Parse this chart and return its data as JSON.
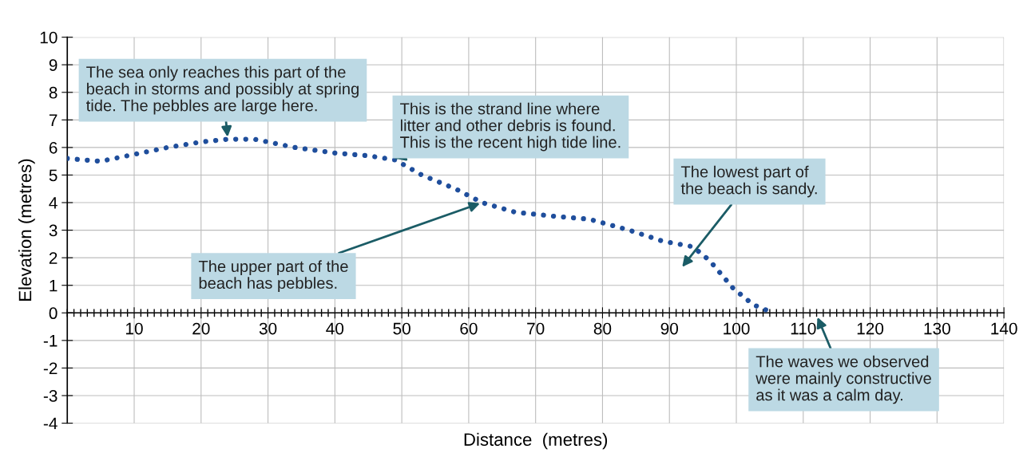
{
  "chart_data": {
    "type": "line",
    "xlabel": "Distance  (metres)",
    "ylabel": "Elevation (metres)",
    "x": [
      0,
      5,
      10,
      15,
      20,
      24,
      28,
      34,
      40,
      45,
      49,
      53,
      58,
      62,
      67,
      73,
      78,
      84,
      89,
      93.5,
      96,
      99.5,
      102.5,
      105
    ],
    "series": [
      {
        "color": "#1f4e9c",
        "values": [
          5.6,
          5.5,
          5.75,
          6.0,
          6.2,
          6.3,
          6.3,
          6.0,
          5.8,
          5.7,
          5.55,
          5.0,
          4.5,
          4.0,
          3.65,
          3.5,
          3.4,
          3.0,
          2.6,
          2.4,
          1.9,
          0.9,
          0.3,
          0.05
        ]
      }
    ],
    "line_style": "dotted",
    "marker": "none",
    "grid": true,
    "xlim": [
      0,
      140
    ],
    "xticks": [
      10,
      20,
      30,
      40,
      50,
      60,
      70,
      80,
      90,
      100,
      110,
      120,
      130,
      140
    ],
    "ylim": [
      -4,
      10
    ],
    "yticks": [
      -4,
      -3,
      -2,
      -1,
      0,
      1,
      2,
      3,
      4,
      5,
      6,
      7,
      8,
      9,
      10
    ],
    "annotations": [
      {
        "text": "The sea only reaches this part of the\nbeach in storms and possibly at spring\ntide. The pebbles are large here.",
        "x": 24,
        "y": 6.3
      },
      {
        "text": "This is the strand line where\nlitter and other debris is found.\nThis is the recent high tide line.",
        "x": 49,
        "y": 5.6
      },
      {
        "text": "The upper part of the\nbeach has pebbles.",
        "x": 62,
        "y": 4.0
      },
      "The lowest part of\nthe beach is sandy.",
      "The waves we observed\nwere mainly constructive\nas it was a calm day."
    ]
  }
}
